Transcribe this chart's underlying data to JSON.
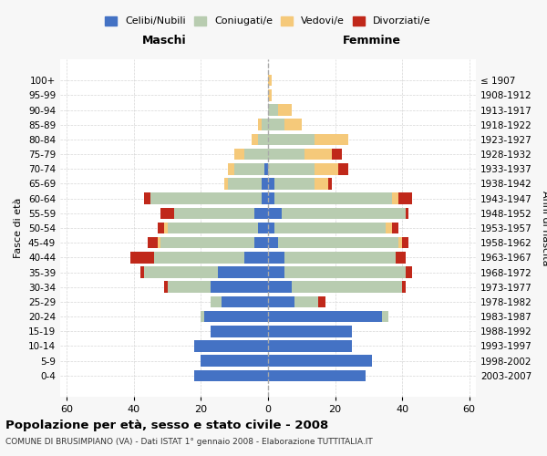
{
  "age_groups": [
    "0-4",
    "5-9",
    "10-14",
    "15-19",
    "20-24",
    "25-29",
    "30-34",
    "35-39",
    "40-44",
    "45-49",
    "50-54",
    "55-59",
    "60-64",
    "65-69",
    "70-74",
    "75-79",
    "80-84",
    "85-89",
    "90-94",
    "95-99",
    "100+"
  ],
  "birth_years": [
    "2003-2007",
    "1998-2002",
    "1993-1997",
    "1988-1992",
    "1983-1987",
    "1978-1982",
    "1973-1977",
    "1968-1972",
    "1963-1967",
    "1958-1962",
    "1953-1957",
    "1948-1952",
    "1943-1947",
    "1938-1942",
    "1933-1937",
    "1928-1932",
    "1923-1927",
    "1918-1922",
    "1913-1917",
    "1908-1912",
    "≤ 1907"
  ],
  "colors": {
    "celibi": "#4472C4",
    "coniugati": "#B8CCB0",
    "vedovi": "#F5C97A",
    "divorziati": "#C0281A"
  },
  "maschi": {
    "celibi": [
      22,
      20,
      22,
      17,
      19,
      14,
      17,
      15,
      7,
      4,
      3,
      4,
      2,
      2,
      1,
      0,
      0,
      0,
      0,
      0,
      0
    ],
    "coniugati": [
      0,
      0,
      0,
      0,
      1,
      3,
      13,
      22,
      27,
      28,
      27,
      24,
      33,
      10,
      9,
      7,
      3,
      2,
      0,
      0,
      0
    ],
    "vedovi": [
      0,
      0,
      0,
      0,
      0,
      0,
      0,
      0,
      0,
      1,
      1,
      0,
      0,
      1,
      2,
      3,
      2,
      1,
      0,
      0,
      0
    ],
    "divorziati": [
      0,
      0,
      0,
      0,
      0,
      0,
      1,
      1,
      7,
      3,
      2,
      4,
      2,
      0,
      0,
      0,
      0,
      0,
      0,
      0,
      0
    ]
  },
  "femmine": {
    "celibi": [
      29,
      31,
      25,
      25,
      34,
      8,
      7,
      5,
      5,
      3,
      2,
      4,
      2,
      2,
      0,
      0,
      0,
      0,
      0,
      0,
      0
    ],
    "coniugati": [
      0,
      0,
      0,
      0,
      2,
      7,
      33,
      36,
      33,
      36,
      33,
      37,
      35,
      12,
      14,
      11,
      14,
      5,
      3,
      0,
      0
    ],
    "vedovi": [
      0,
      0,
      0,
      0,
      0,
      0,
      0,
      0,
      0,
      1,
      2,
      0,
      2,
      4,
      7,
      8,
      10,
      5,
      4,
      1,
      1
    ],
    "divorziati": [
      0,
      0,
      0,
      0,
      0,
      2,
      1,
      2,
      3,
      2,
      2,
      1,
      4,
      1,
      3,
      3,
      0,
      0,
      0,
      0,
      0
    ]
  },
  "xlim": 62,
  "title": "Popolazione per età, sesso e stato civile - 2008",
  "subtitle": "COMUNE DI BRUSIMPIANO (VA) - Dati ISTAT 1° gennaio 2008 - Elaborazione TUTTITALIA.IT",
  "ylabel_left": "Fasce di età",
  "ylabel_right": "Anni di nascita",
  "header_maschi": "Maschi",
  "header_femmine": "Femmine",
  "legend_labels": [
    "Celibi/Nubili",
    "Coniugati/e",
    "Vedovi/e",
    "Divorziati/e"
  ],
  "bg_color": "#F7F7F7",
  "plot_bg": "#FFFFFF"
}
